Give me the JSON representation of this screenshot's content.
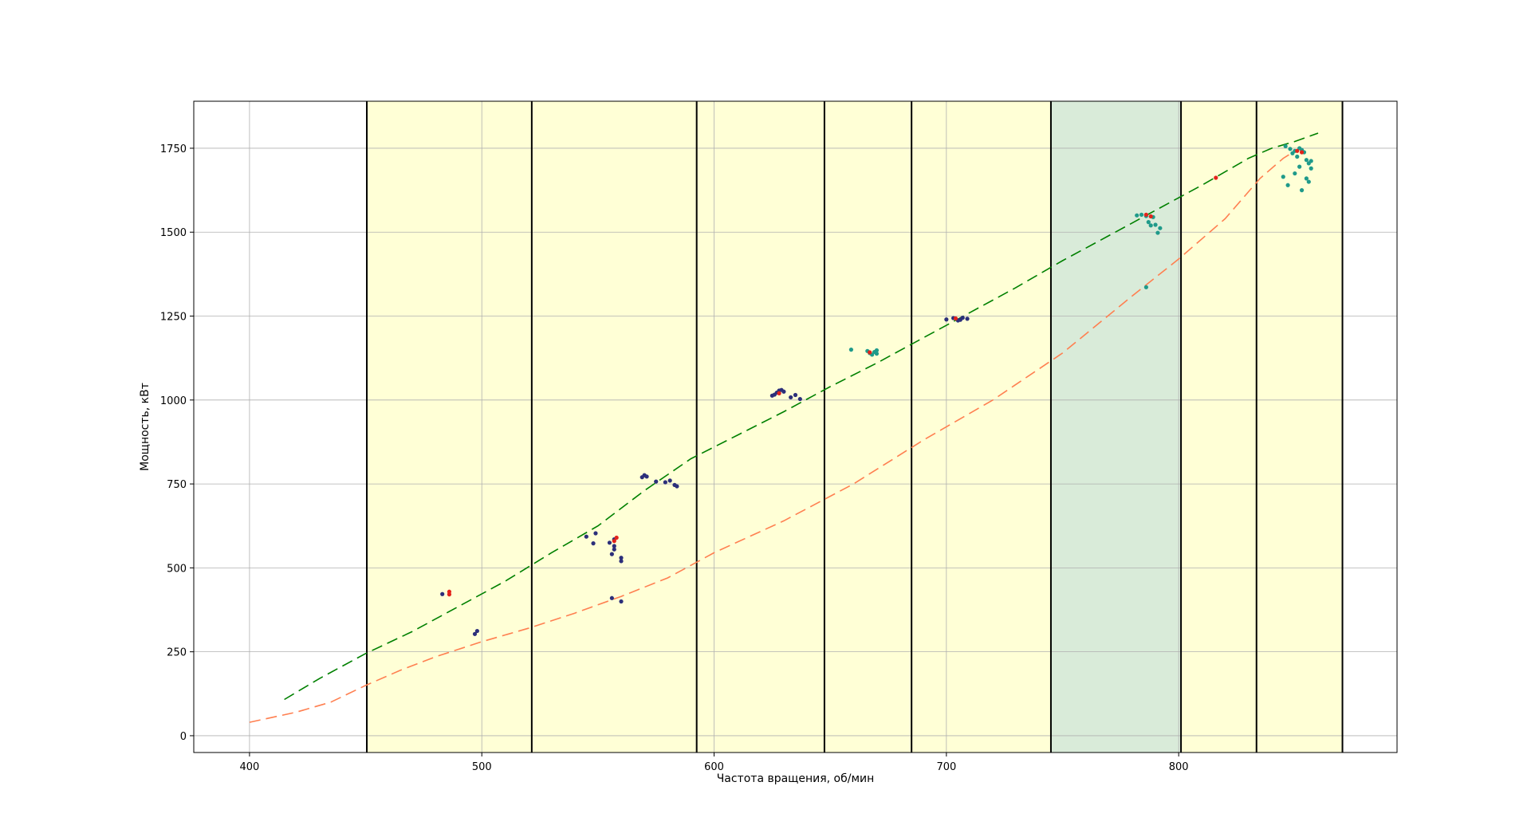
{
  "chart_data": {
    "type": "scatter",
    "title": "",
    "xlabel": "Частота вращения, об/мин",
    "ylabel": "Мощность, кВт",
    "xlim": [
      376,
      894
    ],
    "ylim": [
      -50,
      1890
    ],
    "xticks": [
      400,
      500,
      600,
      700,
      800
    ],
    "yticks": [
      0,
      250,
      500,
      750,
      1000,
      1250,
      1500,
      1750
    ],
    "grid": true,
    "bands": [
      {
        "x0": 450.5,
        "x1": 521.5,
        "color": "#ffffd6"
      },
      {
        "x0": 521.5,
        "x1": 592.5,
        "color": "#ffffd6"
      },
      {
        "x0": 592.5,
        "x1": 647.5,
        "color": "#ffffd6"
      },
      {
        "x0": 647.5,
        "x1": 685,
        "color": "#ffffd6"
      },
      {
        "x0": 685,
        "x1": 745,
        "color": "#ffffd6"
      },
      {
        "x0": 745,
        "x1": 801,
        "color": "#d9ebd9"
      },
      {
        "x0": 801,
        "x1": 833.5,
        "color": "#ffffd6"
      },
      {
        "x0": 833.5,
        "x1": 870.5,
        "color": "#ffffd6"
      }
    ],
    "vlines": [
      450.5,
      521.5,
      592.5,
      647.5,
      685,
      745,
      801,
      833.5,
      870.5
    ],
    "lines": [
      {
        "name": "upper-limit",
        "color": "#008000",
        "dash": "14,7",
        "x": [
          415,
          430,
          450,
          470,
          490,
          510,
          530,
          550,
          570,
          590,
          610,
          630,
          650,
          670,
          690,
          710,
          730,
          750,
          770,
          790,
          810,
          830,
          840,
          850,
          860
        ],
        "y": [
          108,
          170,
          245,
          310,
          385,
          460,
          545,
          625,
          730,
          825,
          895,
          965,
          1040,
          1110,
          1185,
          1260,
          1335,
          1415,
          1490,
          1565,
          1640,
          1720,
          1750,
          1770,
          1795
        ]
      },
      {
        "name": "lower-limit",
        "color": "#ff7f50",
        "dash": "14,7",
        "x": [
          400,
          420,
          435,
          450,
          465,
          480,
          500,
          520,
          540,
          560,
          580,
          600,
          630,
          660,
          690,
          720,
          750,
          780,
          800,
          820,
          835,
          845,
          852
        ],
        "y": [
          40,
          70,
          100,
          150,
          195,
          235,
          280,
          320,
          365,
          415,
          470,
          545,
          640,
          750,
          880,
          1000,
          1140,
          1310,
          1420,
          1540,
          1660,
          1720,
          1750
        ]
      }
    ],
    "series": [
      {
        "color": "#2c2f7a",
        "points": [
          [
            483,
            422
          ],
          [
            498,
            312
          ],
          [
            497,
            303
          ],
          [
            545,
            593
          ],
          [
            549,
            603
          ],
          [
            548,
            573
          ],
          [
            555,
            575
          ],
          [
            556,
            541
          ],
          [
            557,
            555
          ],
          [
            557,
            565
          ],
          [
            557,
            585
          ],
          [
            556,
            410
          ],
          [
            560,
            400
          ],
          [
            560,
            520
          ],
          [
            560,
            530
          ],
          [
            569,
            770
          ],
          [
            570,
            776
          ],
          [
            571,
            772
          ],
          [
            575,
            757
          ],
          [
            579,
            755
          ],
          [
            581,
            760
          ],
          [
            583,
            747
          ],
          [
            584,
            743
          ],
          [
            625,
            1013
          ],
          [
            626,
            1016
          ],
          [
            627,
            1022
          ],
          [
            628,
            1028
          ],
          [
            629,
            1030
          ],
          [
            630,
            1025
          ],
          [
            633,
            1008
          ],
          [
            635,
            1015
          ],
          [
            637,
            1003
          ],
          [
            700,
            1240
          ],
          [
            703,
            1244
          ],
          [
            705,
            1237
          ],
          [
            706,
            1239
          ],
          [
            707,
            1245
          ],
          [
            709,
            1242
          ]
        ]
      },
      {
        "color": "#1f9a8a",
        "points": [
          [
            659,
            1150
          ],
          [
            666,
            1146
          ],
          [
            667,
            1140
          ],
          [
            668,
            1135
          ],
          [
            669,
            1143
          ],
          [
            670,
            1148
          ],
          [
            670,
            1138
          ],
          [
            782,
            1550
          ],
          [
            784,
            1552
          ],
          [
            786,
            1548
          ],
          [
            787,
            1530
          ],
          [
            788,
            1520
          ],
          [
            789,
            1545
          ],
          [
            790,
            1522
          ],
          [
            791,
            1498
          ],
          [
            792,
            1512
          ],
          [
            786,
            1336
          ],
          [
            846,
            1756
          ],
          [
            848,
            1748
          ],
          [
            849,
            1735
          ],
          [
            850,
            1742
          ],
          [
            851,
            1725
          ],
          [
            852,
            1750
          ],
          [
            853,
            1745
          ],
          [
            854,
            1738
          ],
          [
            855,
            1715
          ],
          [
            856,
            1705
          ],
          [
            857,
            1690
          ],
          [
            852,
            1695
          ],
          [
            850,
            1675
          ],
          [
            847,
            1640
          ],
          [
            845,
            1665
          ],
          [
            853,
            1625
          ],
          [
            855,
            1660
          ],
          [
            856,
            1650
          ],
          [
            857,
            1712
          ]
        ]
      },
      {
        "color": "#e3231b",
        "points": [
          [
            486,
            421
          ],
          [
            486,
            429
          ],
          [
            557,
            580
          ],
          [
            558,
            590
          ],
          [
            628,
            1020
          ],
          [
            667,
            1142
          ],
          [
            704,
            1243
          ],
          [
            786,
            1552
          ],
          [
            788,
            1547
          ],
          [
            816,
            1662
          ],
          [
            851,
            1742
          ],
          [
            853,
            1738
          ]
        ]
      }
    ]
  }
}
